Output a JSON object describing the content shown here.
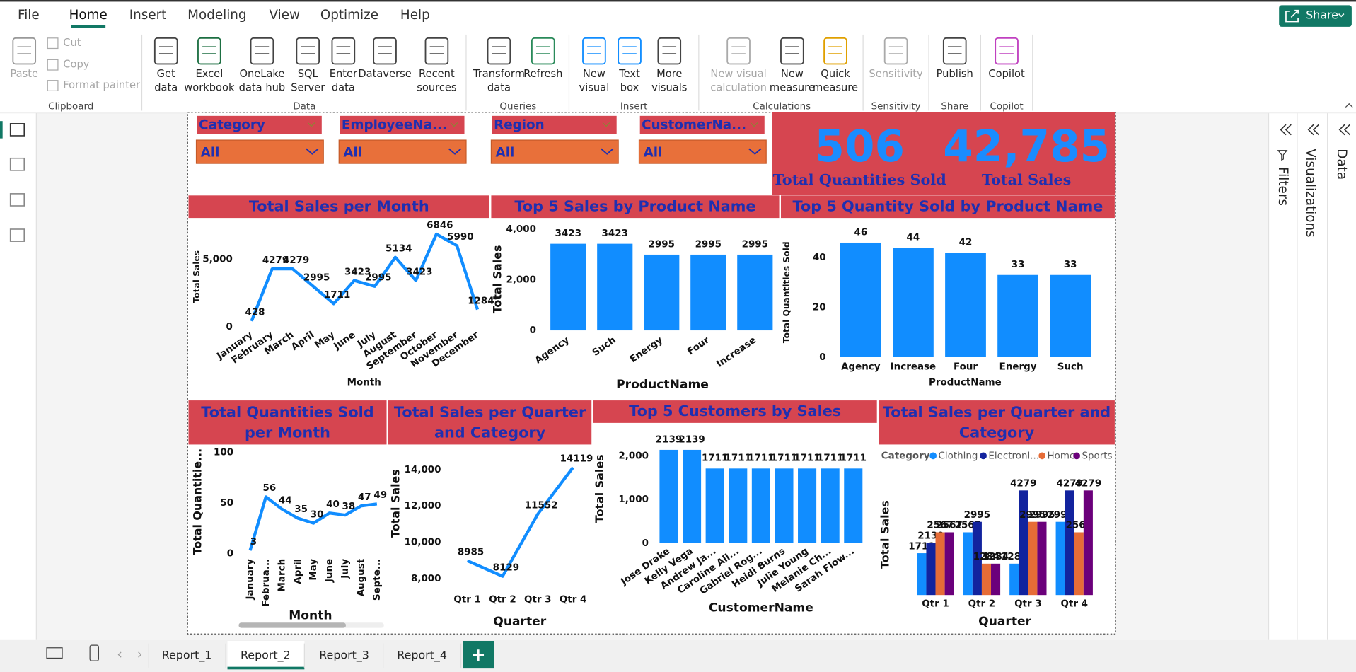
{
  "menu": [
    "File",
    "Home",
    "Insert",
    "Modeling",
    "View",
    "Optimize",
    "Help"
  ],
  "share_button": "Share",
  "ribbon_groups": [
    {
      "name": "Clipboard",
      "buttons": [
        {
          "lines": [
            "Paste"
          ]
        },
        {
          "lines": [
            "Cut"
          ]
        },
        {
          "lines": [
            "Copy"
          ]
        },
        {
          "lines": [
            "Format painter"
          ]
        }
      ]
    },
    {
      "name": "Data",
      "buttons": [
        {
          "lines": [
            "Get",
            "data"
          ]
        },
        {
          "lines": [
            "Excel",
            "workbook"
          ]
        },
        {
          "lines": [
            "OneLake",
            "data hub"
          ]
        },
        {
          "lines": [
            "SQL",
            "Server"
          ]
        },
        {
          "lines": [
            "Enter",
            "data"
          ]
        },
        {
          "lines": [
            "Dataverse"
          ]
        },
        {
          "lines": [
            "Recent",
            "sources"
          ]
        }
      ]
    },
    {
      "name": "Queries",
      "buttons": [
        {
          "lines": [
            "Transform",
            "data"
          ]
        },
        {
          "lines": [
            "Refresh"
          ]
        }
      ]
    },
    {
      "name": "Insert",
      "buttons": [
        {
          "lines": [
            "New",
            "visual"
          ]
        },
        {
          "lines": [
            "Text",
            "box"
          ]
        },
        {
          "lines": [
            "More",
            "visuals"
          ]
        }
      ]
    },
    {
      "name": "Calculations",
      "buttons": [
        {
          "lines": [
            "New visual",
            "calculation"
          ]
        },
        {
          "lines": [
            "New",
            "measure"
          ]
        },
        {
          "lines": [
            "Quick",
            "measure"
          ]
        }
      ]
    },
    {
      "name": "Sensitivity",
      "buttons": [
        {
          "lines": [
            "Sensitivity"
          ]
        }
      ]
    },
    {
      "name": "Share",
      "buttons": [
        {
          "lines": [
            "Publish"
          ]
        }
      ]
    },
    {
      "name": "Copilot",
      "buttons": [
        {
          "lines": [
            "Copilot"
          ]
        }
      ]
    }
  ],
  "slicers": [
    {
      "label": "Category",
      "value": "All"
    },
    {
      "label": "EmployeeNa...",
      "value": "All"
    },
    {
      "label": "Region",
      "value": "All"
    },
    {
      "label": "CustomerNa...",
      "value": "All"
    }
  ],
  "cards": [
    {
      "value": "506",
      "label": "Total Quantities Sold"
    },
    {
      "value": "42,785",
      "label": "Total Sales"
    }
  ],
  "chart_data": [
    {
      "type": "line",
      "title": "Total Sales per Month",
      "x_label": "Month",
      "y_label": "Total Sales",
      "color": "#118DFF",
      "categories": [
        "January",
        "February",
        "March",
        "April",
        "May",
        "June",
        "July",
        "August",
        "September",
        "October",
        "November",
        "December"
      ],
      "values": [
        428,
        4279,
        4279,
        2995,
        1711,
        3423,
        2995,
        5134,
        3423,
        6846,
        5990,
        1284
      ],
      "ylim": [
        0,
        7400
      ],
      "yticks": [
        0,
        {
          "value": 5000,
          "label": "5,000"
        }
      ]
    },
    {
      "type": "bar",
      "title": "Top 5 Sales by Product Name",
      "x_label": "ProductName",
      "y_label": "Total Sales",
      "color": "#118DFF",
      "categories": [
        "Agency",
        "Such",
        "Energy",
        "Four",
        "Increase"
      ],
      "values": [
        3423,
        3423,
        2995,
        2995,
        2995
      ],
      "ylim": [
        0,
        4000
      ],
      "yticks": [
        0,
        {
          "value": 2000,
          "label": "2,000"
        },
        {
          "value": 4000,
          "label": "4,000"
        }
      ]
    },
    {
      "type": "bar",
      "title": "Top 5 Quantity Sold by Product Name",
      "x_label": "ProductName",
      "y_label": "Total Quantities Sold",
      "color": "#118DFF",
      "categories": [
        "Agency",
        "Increase",
        "Four",
        "Energy",
        "Such"
      ],
      "values": [
        46,
        44,
        42,
        33,
        33
      ],
      "ylim": [
        0,
        50
      ],
      "yticks": [
        0,
        20,
        40
      ]
    },
    {
      "type": "line",
      "title": "Total Quantities Sold per Month",
      "x_label": "Month",
      "y_label": "Total Quantitie...",
      "color": "#118DFF",
      "categories": [
        "January",
        "Februa...",
        "March",
        "April",
        "May",
        "June",
        "July",
        "August",
        "Septe..."
      ],
      "values": [
        3,
        56,
        44,
        35,
        30,
        40,
        38,
        47,
        49
      ],
      "ylim": [
        0,
        100
      ],
      "yticks": [
        0,
        50,
        100
      ]
    },
    {
      "type": "line",
      "title": "Total Sales per Quarter and Category",
      "x_label": "Quarter",
      "y_label": "Total Sales",
      "color": "#118DFF",
      "categories": [
        "Qtr 1",
        "Qtr 2",
        "Qtr 3",
        "Qtr 4"
      ],
      "values": [
        8985,
        8129,
        11552,
        14119
      ],
      "ylim": [
        7000,
        15000
      ],
      "yticks": [
        {
          "value": 8000,
          "label": "8,000"
        },
        {
          "value": 10000,
          "label": "10,000"
        },
        {
          "value": 12000,
          "label": "12,000"
        },
        {
          "value": 14000,
          "label": "14,000"
        }
      ]
    },
    {
      "type": "bar",
      "title": "Top 5 Customers by Sales",
      "x_label": "CustomerName",
      "y_label": "Total Sales",
      "color": "#118DFF",
      "categories": [
        "Jose Drake",
        "Kelly Vega",
        "Andrew Ja...",
        "Caroline All...",
        "Gabriel Rog...",
        "Heidi Burns",
        "Julie Young",
        "Melanie Ch...",
        "Sarah Flow..."
      ],
      "values": [
        2139,
        2139,
        1711,
        1711,
        1711,
        1711,
        1711,
        1711,
        1711
      ],
      "ylim": [
        0,
        2300
      ],
      "yticks": [
        0,
        {
          "value": 1000,
          "label": "1,000"
        },
        {
          "value": 2000,
          "label": "2,000"
        }
      ]
    },
    {
      "type": "grouped_bar",
      "title": "Total Sales per Quarter and Category",
      "x_label": "Quarter",
      "y_label": "Total Sales",
      "legend_title": "Category",
      "categories": [
        "Qtr 1",
        "Qtr 2",
        "Qtr 3",
        "Qtr 4"
      ],
      "series": [
        {
          "name": "Clothing",
          "color": "#118DFF",
          "values": [
            1711,
            2567,
            1284,
            2995
          ]
        },
        {
          "name": "Electroni...",
          "color": "#12239E",
          "values": [
            2139,
            2995,
            4279,
            4279
          ]
        },
        {
          "name": "Home",
          "color": "#E66C37",
          "values": [
            2567,
            1284,
            2995,
            2567
          ]
        },
        {
          "name": "Sports",
          "color": "#6B007B",
          "values": [
            2567,
            1284,
            2995,
            4279
          ]
        }
      ],
      "ylim": [
        0,
        4600
      ]
    }
  ],
  "side_panes": [
    "Filters",
    "Visualizations",
    "Data"
  ],
  "pages": [
    "Report_1",
    "Report_2",
    "Report_3",
    "Report_4"
  ]
}
